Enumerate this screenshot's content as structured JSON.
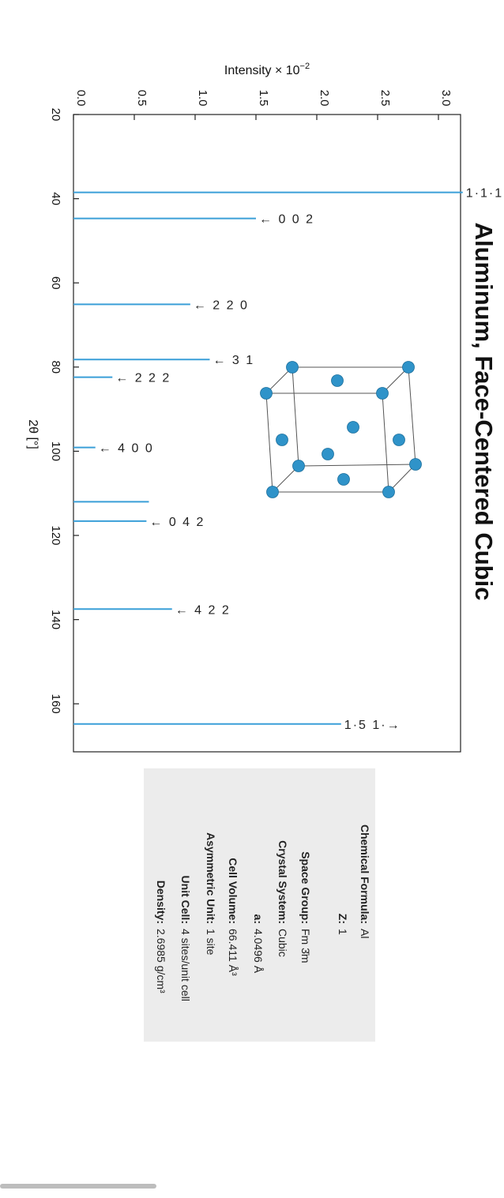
{
  "chart_data": {
    "type": "bar",
    "title": "Aluminum, Face-Centered Cubic",
    "xlabel": "2θ [°]",
    "ylabel": "Intensity × 10",
    "ylabel_exponent": "−2",
    "xlim": [
      20,
      170
    ],
    "ylim": [
      0,
      3.2
    ],
    "xticks": [
      20,
      40,
      60,
      80,
      100,
      120,
      140,
      160
    ],
    "yticks": [
      0.0,
      0.5,
      1.0,
      1.5,
      2.0,
      2.5,
      3.0
    ],
    "ytick_labels": [
      "0.0",
      "0.5",
      "1.0",
      "1.5",
      "2.0",
      "2.5",
      "3.0"
    ],
    "grid": false,
    "peaks": [
      {
        "x": 38.5,
        "y": 3.2,
        "label": "1·1·1·→",
        "pre_arrow": false
      },
      {
        "x": 44.7,
        "y": 1.5,
        "label": "0 0 2",
        "pre_arrow": true
      },
      {
        "x": 65.1,
        "y": 0.96,
        "label": "2 2 0",
        "pre_arrow": true
      },
      {
        "x": 78.2,
        "y": 1.12,
        "label": "3 1",
        "pre_arrow": true
      },
      {
        "x": 82.4,
        "y": 0.32,
        "label": "2 2 2",
        "pre_arrow": true
      },
      {
        "x": 99.1,
        "y": 0.18,
        "label": "4 0 0",
        "pre_arrow": true
      },
      {
        "x": 112.0,
        "y": 0.62,
        "label": "",
        "pre_arrow": false
      },
      {
        "x": 116.6,
        "y": 0.6,
        "label": "0 4 2",
        "pre_arrow": true
      },
      {
        "x": 137.5,
        "y": 0.81,
        "label": "4 2 2",
        "pre_arrow": true
      },
      {
        "x": 164.8,
        "y": 2.2,
        "label": "1·5 1·→",
        "pre_arrow": false
      }
    ]
  },
  "info": {
    "rows": [
      {
        "key": "Chemical Formula:",
        "value": "Al"
      },
      {
        "key": "Z:",
        "value": "1"
      },
      {
        "key": "Space Group:",
        "value": "Fm 3̄m"
      },
      {
        "key": "Crystal System:",
        "value": "Cubic"
      },
      {
        "key": "a:",
        "value": "4.0496 Å"
      },
      {
        "key": "Cell Volume:",
        "value": "66.411 Å³"
      },
      {
        "key": "Asymmetric Unit:",
        "value": "1 site"
      },
      {
        "key": "Unit Cell:",
        "value": "4 sites/unit cell"
      },
      {
        "key": "Density:",
        "value": "2.6985 g/cm³"
      }
    ]
  },
  "colors": {
    "peak": "#3a9fd8",
    "atom": "#2f93c9",
    "frame": "#222222",
    "info_bg": "#ececec"
  }
}
